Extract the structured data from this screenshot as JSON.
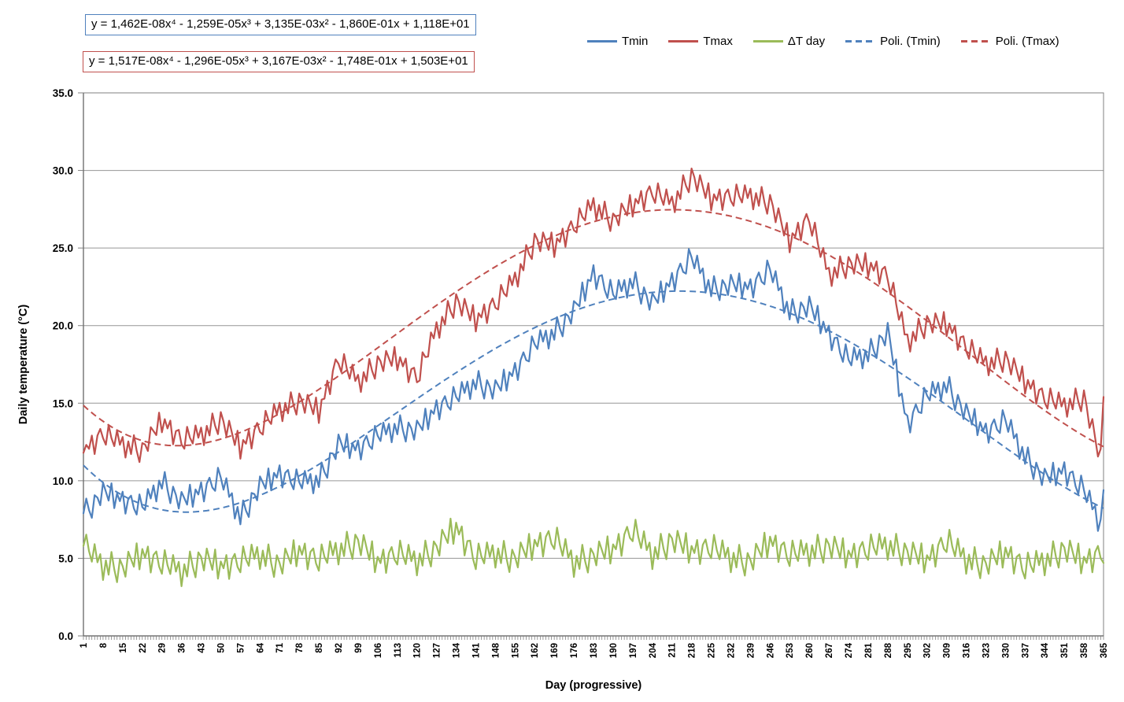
{
  "equations": {
    "tmin": "y = 1,462E-08x⁴ - 1,259E-05x³ + 3,135E-03x² - 1,860E-01x + 1,118E+01",
    "tmax": "y = 1,517E-08x⁴ - 1,296E-05x³ + 3,167E-03x² - 1,748E-01x + 1,503E+01"
  },
  "colors": {
    "tmin_blue": "#4F81BD",
    "tmax_red": "#C0504D",
    "delta_green": "#9BBB59",
    "gridline": "#969696",
    "plot_border": "#808080",
    "axis_line": "#595959",
    "tick": "#7F7F7F",
    "text": "#000000",
    "background": "#FFFFFF"
  },
  "chart_data": {
    "type": "line",
    "title": "",
    "xlabel": "Day (progressive)",
    "ylabel": "Daily temperature (°C)",
    "x_range": [
      1,
      365
    ],
    "y_range": [
      0.0,
      35.0
    ],
    "y_tick_step": 5.0,
    "y_tick_labels": [
      "0.0",
      "5.0",
      "10.0",
      "15.0",
      "20.0",
      "25.0",
      "30.0",
      "35.0"
    ],
    "x_tick_labels": [
      1,
      8,
      15,
      22,
      29,
      36,
      43,
      50,
      57,
      64,
      71,
      78,
      85,
      92,
      99,
      106,
      113,
      120,
      127,
      134,
      141,
      148,
      155,
      162,
      169,
      176,
      183,
      190,
      197,
      204,
      211,
      218,
      225,
      232,
      239,
      246,
      253,
      260,
      267,
      274,
      281,
      288,
      295,
      302,
      309,
      316,
      323,
      330,
      337,
      344,
      351,
      358,
      365
    ],
    "grid": "horizontal",
    "legend_position": "top-right",
    "legend": [
      {
        "label": "Tmin",
        "color": "#4F81BD",
        "style": "solid"
      },
      {
        "label": "Tmax",
        "color": "#C0504D",
        "style": "solid"
      },
      {
        "label": "ΔT day",
        "color": "#9BBB59",
        "style": "solid"
      },
      {
        "label": "Poli. (Tmin)",
        "color": "#4F81BD",
        "style": "dashed"
      },
      {
        "label": "Poli. (Tmax)",
        "color": "#C0504D",
        "style": "dashed"
      }
    ],
    "x_weekly": [
      1,
      8,
      15,
      22,
      29,
      36,
      43,
      50,
      57,
      64,
      71,
      78,
      85,
      92,
      99,
      106,
      113,
      120,
      127,
      134,
      141,
      148,
      155,
      162,
      169,
      176,
      183,
      190,
      197,
      204,
      211,
      218,
      225,
      232,
      239,
      246,
      253,
      260,
      267,
      274,
      281,
      288,
      295,
      302,
      309,
      316,
      323,
      330,
      337,
      344,
      351,
      358,
      365
    ],
    "series": [
      {
        "name": "Tmin",
        "color": "#4F81BD",
        "weekly_values": [
          7.9,
          9.2,
          8.7,
          8.3,
          10.0,
          8.6,
          9.3,
          10.2,
          7.7,
          9.6,
          10.4,
          9.9,
          10.1,
          12.3,
          12.0,
          12.9,
          13.5,
          13.2,
          14.6,
          15.4,
          16.4,
          15.8,
          17.0,
          18.8,
          19.6,
          20.9,
          23.3,
          22.0,
          22.9,
          21.4,
          22.8,
          24.4,
          22.4,
          22.6,
          22.4,
          23.6,
          20.9,
          21.2,
          19.4,
          17.8,
          18.2,
          19.5,
          13.6,
          15.5,
          16.2,
          14.3,
          13.1,
          13.9,
          11.6,
          10.1,
          10.6,
          9.4,
          6.9
        ],
        "noise_amplitude": 0.85,
        "noise_offset": 0
      },
      {
        "name": "Tmax",
        "color": "#C0504D",
        "weekly_values": [
          11.8,
          13.0,
          12.4,
          12.0,
          13.8,
          12.6,
          13.0,
          14.0,
          12.1,
          13.4,
          14.6,
          15.2,
          14.4,
          17.8,
          16.4,
          17.6,
          17.8,
          16.6,
          19.8,
          21.6,
          20.3,
          21.4,
          23.0,
          25.5,
          25.1,
          26.4,
          27.8,
          26.8,
          27.7,
          28.6,
          27.9,
          29.7,
          28.1,
          28.3,
          28.4,
          28.0,
          25.4,
          26.9,
          23.3,
          24.0,
          23.8,
          23.2,
          19.0,
          20.2,
          20.0,
          18.6,
          17.6,
          17.9,
          16.3,
          15.3,
          14.9,
          15.4,
          10.5
        ],
        "noise_amplitude": 0.85,
        "noise_offset": 11
      },
      {
        "name": "ΔT day",
        "color": "#9BBB59",
        "weekly_values": [
          5.8,
          4.6,
          4.4,
          5.2,
          4.7,
          4.2,
          5.0,
          4.4,
          4.8,
          5.3,
          4.6,
          5.4,
          4.9,
          5.6,
          6.1,
          4.7,
          5.3,
          4.9,
          5.7,
          6.9,
          5.0,
          5.4,
          5.0,
          5.8,
          6.3,
          4.8,
          5.2,
          5.5,
          6.8,
          5.3,
          6.2,
          5.4,
          5.7,
          5.1,
          4.8,
          6.0,
          5.2,
          5.5,
          5.8,
          5.1,
          5.6,
          5.9,
          5.4,
          4.8,
          6.1,
          5.0,
          4.6,
          5.3,
          4.4,
          4.9,
          5.6,
          4.7,
          5.4
        ],
        "noise_amplitude": 1.0,
        "noise_offset": 19
      }
    ],
    "daily_noise_pattern": [
      0.3,
      -0.6,
      0.9,
      -0.2,
      -1.0,
      0.5,
      0.1,
      -0.7,
      0.8,
      0.2,
      -0.4,
      1.0,
      -0.8,
      0.4,
      -0.1,
      0.7,
      -0.9,
      0.3,
      0.6,
      -0.3,
      -0.7,
      0.9,
      0.0,
      -0.5,
      0.8,
      -0.2,
      0.5,
      -1.0
    ],
    "trendlines": [
      {
        "name": "Poli. (Tmin)",
        "color": "#4F81BD",
        "coefficients": [
          1.462e-08,
          -1.259e-05,
          0.003135,
          -0.186,
          11.18
        ]
      },
      {
        "name": "Poli. (Tmax)",
        "color": "#C0504D",
        "coefficients": [
          1.517e-08,
          -1.296e-05,
          0.003167,
          -0.1748,
          15.03
        ]
      }
    ]
  }
}
